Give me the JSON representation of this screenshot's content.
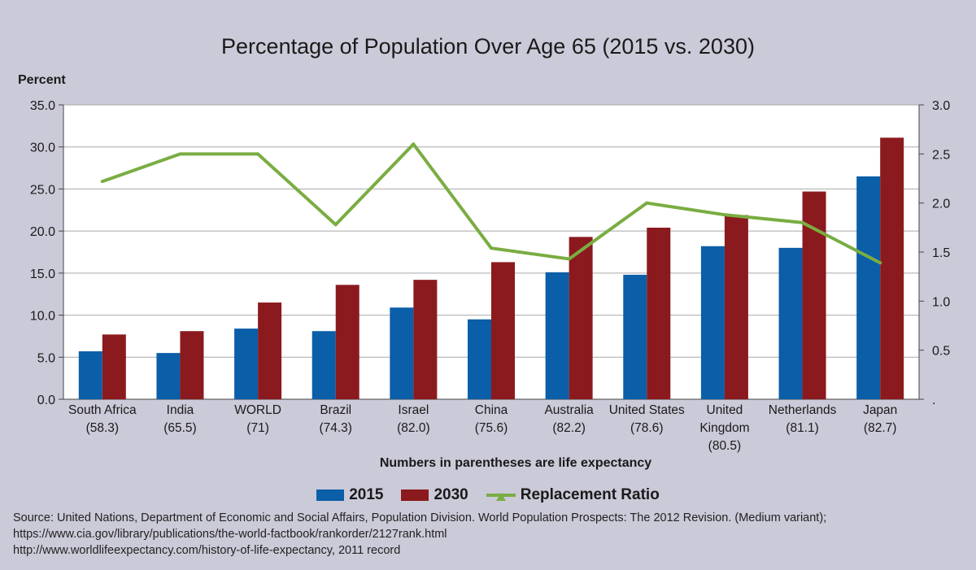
{
  "chart_data": {
    "type": "bar",
    "title": "Percentage of Population Over Age 65 (2015 vs. 2030)",
    "ylabel": "Percent",
    "xlabel": "Numbers in parentheses are life expectancy",
    "categories": [
      [
        "South Africa",
        "(58.3)"
      ],
      [
        "India",
        "(65.5)"
      ],
      [
        "WORLD",
        "(71)"
      ],
      [
        "Brazil",
        "(74.3)"
      ],
      [
        "Israel",
        "(82.0)"
      ],
      [
        "China",
        "(75.6)"
      ],
      [
        "Australia",
        "(82.2)"
      ],
      [
        "United States",
        "(78.6)"
      ],
      [
        "United",
        "Kingdom",
        "(80.5)"
      ],
      [
        "Netherlands",
        "(81.1)"
      ],
      [
        "Japan",
        "(82.7)"
      ]
    ],
    "series": [
      {
        "name": "2015",
        "axis": "left",
        "color": "#0b5ea8",
        "values": [
          5.7,
          5.5,
          8.4,
          8.1,
          10.9,
          9.5,
          15.1,
          14.8,
          18.2,
          18.0,
          26.5
        ]
      },
      {
        "name": "2030",
        "axis": "left",
        "color": "#8b1a1e",
        "values": [
          7.7,
          8.1,
          11.5,
          13.6,
          14.2,
          16.3,
          19.3,
          20.4,
          21.9,
          24.7,
          31.1
        ]
      },
      {
        "name": "Replacement Ratio",
        "type": "line",
        "axis": "right",
        "color": "#7aad42",
        "values": [
          2.22,
          2.5,
          2.5,
          1.78,
          2.6,
          1.54,
          1.43,
          2.0,
          1.88,
          1.8,
          1.39
        ]
      }
    ],
    "ylim": [
      0,
      35
    ],
    "yticks": [
      "0.0",
      "5.0",
      "10.0",
      "15.0",
      "20.0",
      "25.0",
      "30.0",
      "35.0"
    ],
    "y2lim": [
      0,
      3
    ],
    "y2ticks": [
      ".",
      "0.5",
      "1.0",
      "1.5",
      "2.0",
      "2.5",
      "3.0"
    ],
    "grid": true,
    "legend": "bottom-center"
  },
  "source": [
    "Source: United Nations, Department of Economic and Social Affairs, Population Division. World Population Prospects: The 2012 Revision. (Medium variant);",
    "https://www.cia.gov/library/publications/the-world-factbook/rankorder/2127rank.html",
    "http://www.worldlifeexpectancy.com/history-of-life-expectancy, 2011 record"
  ]
}
